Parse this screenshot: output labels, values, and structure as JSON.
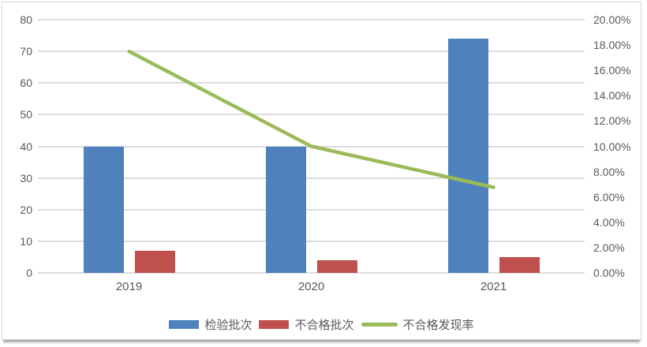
{
  "chart_data": {
    "type": "combo-bar-line",
    "title": "",
    "categories": [
      "2019",
      "2020",
      "2021"
    ],
    "series": [
      {
        "key": "inspection-batches",
        "name": "检验批次",
        "type": "bar",
        "color": "#4F81BD",
        "axis": "left",
        "values": [
          40,
          40,
          74
        ]
      },
      {
        "key": "defect-batches",
        "name": "不合格批次",
        "type": "bar",
        "color": "#C0504D",
        "axis": "left",
        "values": [
          7,
          4,
          5
        ]
      },
      {
        "key": "defect-discovery-rate",
        "name": "不合格发现率",
        "type": "line",
        "color": "#9BBB59",
        "axis": "right",
        "values_pct": [
          17.5,
          10.0,
          6.76
        ]
      }
    ],
    "left_axis": {
      "min": 0,
      "max": 80,
      "tick_labels_top_to_bottom": [
        "80",
        "70",
        "60",
        "50",
        "40",
        "30",
        "20",
        "10",
        "0"
      ]
    },
    "right_axis": {
      "min_pct": 0,
      "max_pct": 20,
      "tick_labels_top_to_bottom": [
        "20.00%",
        "18.00%",
        "16.00%",
        "14.00%",
        "12.00%",
        "10.00%",
        "8.00%",
        "6.00%",
        "4.00%",
        "2.00%",
        "0.00%"
      ]
    },
    "legend": {
      "position": "bottom",
      "items": [
        "检验批次",
        "不合格批次",
        "不合格发现率"
      ]
    },
    "grid": true,
    "colors": {
      "gridline": "#DCDCDC",
      "axis_text": "#595959",
      "frame_border": "#D6D6D6",
      "background": "#FFFFFF"
    }
  }
}
